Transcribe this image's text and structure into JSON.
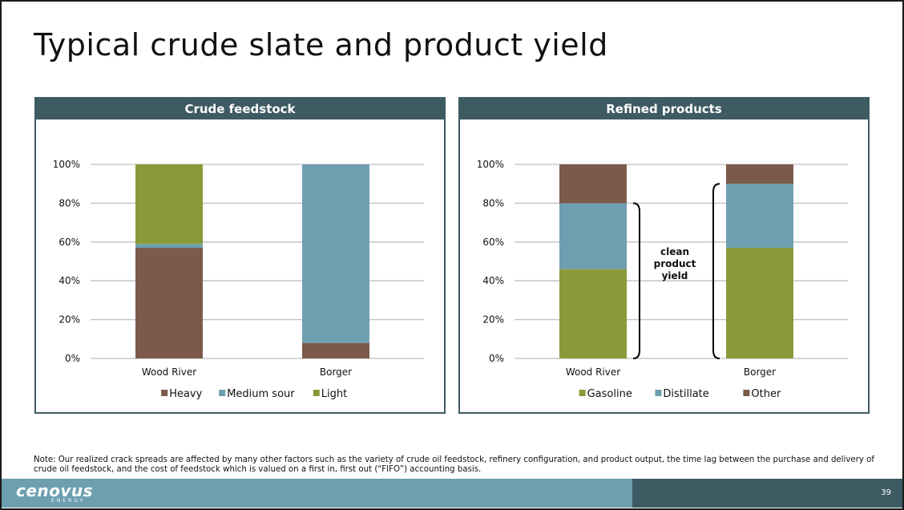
{
  "slide": {
    "title": "Typical crude slate and product yield",
    "note": "Note: Our realized crack spreads are affected by many other factors such as the variety of crude oil feedstock, refinery configuration, and product output, the time lag between the purchase and delivery of crude oil feedstock, and the cost of feedstock which is valued on a first in, first out (“FIFO”) accounting basis.",
    "page_number": "39",
    "logo_text": "cenovus",
    "logo_subtext": "ENERGY"
  },
  "colors": {
    "header": "#3e5a63",
    "brown": "#7b5a4a",
    "blue": "#6e9fb0",
    "green": "#8a9a3a",
    "grid": "#bfbfbf"
  },
  "chart_data": [
    {
      "type": "bar",
      "stacked": true,
      "title": "Crude feedstock",
      "categories": [
        "Wood River",
        "Borger"
      ],
      "series": [
        {
          "name": "Heavy",
          "values": [
            57,
            8
          ],
          "color": "#7b5a4a"
        },
        {
          "name": "Medium sour",
          "values": [
            2,
            92
          ],
          "color": "#6e9fb0"
        },
        {
          "name": "Light",
          "values": [
            41,
            0
          ],
          "color": "#8a9a3a"
        }
      ],
      "ylim": [
        0,
        100
      ],
      "yticks": [
        "0%",
        "20%",
        "40%",
        "60%",
        "80%",
        "100%"
      ],
      "grid": true,
      "legend": "bottom"
    },
    {
      "type": "bar",
      "stacked": true,
      "title": "Refined products",
      "categories": [
        "Wood River",
        "Borger"
      ],
      "series": [
        {
          "name": "Gasoline",
          "values": [
            46,
            57
          ],
          "color": "#8a9a3a"
        },
        {
          "name": "Distillate",
          "values": [
            34,
            33
          ],
          "color": "#6e9fb0"
        },
        {
          "name": "Other",
          "values": [
            20,
            10
          ],
          "color": "#7b5a4a"
        }
      ],
      "ylim": [
        0,
        100
      ],
      "yticks": [
        "0%",
        "20%",
        "40%",
        "60%",
        "80%",
        "100%"
      ],
      "grid": true,
      "legend": "bottom",
      "annotation": "clean product yield"
    }
  ]
}
